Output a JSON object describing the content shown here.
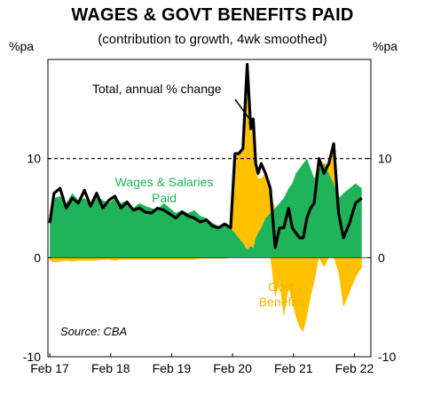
{
  "title": "WAGES & GOVT BENEFITS PAID",
  "subtitle": "(contribution to growth, 4wk smoothed)",
  "y_unit_left": "%pa",
  "y_unit_right": "%pa",
  "source": "Source: CBA",
  "annotations": {
    "total": "Total, annual % change",
    "wages_line1": "Wages & Salaries",
    "wages_line2": "Paid",
    "govt_line1": "Govt",
    "govt_line2": "Benefits"
  },
  "colors": {
    "wages": "#1fb35a",
    "govt": "#ffc000",
    "total": "#000000",
    "wages_text": "#1fb35a",
    "govt_text": "#f5b400"
  },
  "chart_data": {
    "type": "area",
    "title": "WAGES & GOVT BENEFITS PAID",
    "subtitle": "(contribution to growth, 4wk smoothed)",
    "ylabel": "%pa",
    "ylim": [
      -10,
      20
    ],
    "yticks": [
      -10,
      0,
      10
    ],
    "xlim": [
      2017.05,
      2022.35
    ],
    "xticks": [
      {
        "x": 2017.08,
        "label": "Feb 17"
      },
      {
        "x": 2018.08,
        "label": "Feb 18"
      },
      {
        "x": 2019.08,
        "label": "Feb 19"
      },
      {
        "x": 2020.08,
        "label": "Feb 20"
      },
      {
        "x": 2021.08,
        "label": "Feb 21"
      },
      {
        "x": 2022.08,
        "label": "Feb 22"
      }
    ],
    "reference_line": 10,
    "grid": false,
    "x": [
      2017.08,
      2017.15,
      2017.25,
      2017.35,
      2017.45,
      2017.55,
      2017.65,
      2017.75,
      2017.85,
      2017.95,
      2018.05,
      2018.15,
      2018.25,
      2018.35,
      2018.45,
      2018.55,
      2018.65,
      2018.75,
      2018.85,
      2018.95,
      2019.05,
      2019.15,
      2019.25,
      2019.35,
      2019.45,
      2019.55,
      2019.65,
      2019.75,
      2019.85,
      2019.95,
      2020.05,
      2020.12,
      2020.18,
      2020.25,
      2020.32,
      2020.38,
      2020.42,
      2020.46,
      2020.5,
      2020.55,
      2020.62,
      2020.7,
      2020.78,
      2020.85,
      2020.92,
      2021.0,
      2021.06,
      2021.12,
      2021.18,
      2021.24,
      2021.3,
      2021.36,
      2021.42,
      2021.5,
      2021.58,
      2021.66,
      2021.74,
      2021.82,
      2021.9,
      2022.0,
      2022.1,
      2022.2
    ],
    "series": [
      {
        "name": "Wages & Salaries Paid",
        "values": [
          3.5,
          6.0,
          6.2,
          5.5,
          6.5,
          5.8,
          6.0,
          5.5,
          6.2,
          5.8,
          5.5,
          6.0,
          5.5,
          5.8,
          5.0,
          5.5,
          5.2,
          5.0,
          4.8,
          5.5,
          5.0,
          4.5,
          4.8,
          4.5,
          4.8,
          4.2,
          4.0,
          3.5,
          3.2,
          3.5,
          3.0,
          2.5,
          2.0,
          1.5,
          0.8,
          1.2,
          1.0,
          2.0,
          2.5,
          3.0,
          4.0,
          4.5,
          5.0,
          5.5,
          6.0,
          7.0,
          7.5,
          8.5,
          9.0,
          9.5,
          10.0,
          9.0,
          8.0,
          9.0,
          9.5,
          8.5,
          7.5,
          6.0,
          6.5,
          7.0,
          7.5,
          7.0
        ]
      },
      {
        "name": "Govt Benefits",
        "values": [
          -0.3,
          -0.5,
          -0.4,
          -0.3,
          -0.4,
          -0.3,
          -0.3,
          -0.3,
          -0.3,
          -0.2,
          -0.2,
          -0.3,
          -0.2,
          -0.2,
          -0.2,
          -0.2,
          -0.2,
          -0.2,
          -0.2,
          -0.2,
          -0.2,
          -0.2,
          -0.2,
          -0.2,
          -0.2,
          -0.1,
          -0.1,
          -0.1,
          -0.1,
          -0.1,
          0.0,
          8.0,
          8.5,
          9.5,
          19.0,
          11.0,
          13.0,
          7.0,
          5.5,
          5.0,
          4.5,
          2.0,
          -4.0,
          -2.5,
          -6.0,
          -3.0,
          -4.5,
          -6.0,
          -7.0,
          -7.5,
          -6.0,
          -4.0,
          -2.5,
          1.0,
          -1.0,
          1.0,
          3.5,
          -1.5,
          -5.0,
          -3.5,
          -2.0,
          -1.0
        ]
      },
      {
        "name": "Total, annual % change",
        "values": [
          3.5,
          6.5,
          7.0,
          5.0,
          6.0,
          5.5,
          6.8,
          5.2,
          6.5,
          5.0,
          5.8,
          6.2,
          5.0,
          5.6,
          4.8,
          5.0,
          4.6,
          4.5,
          5.0,
          4.8,
          4.4,
          4.0,
          4.6,
          4.2,
          4.0,
          3.6,
          3.8,
          3.2,
          3.0,
          3.4,
          3.0,
          10.5,
          10.5,
          11.0,
          19.5,
          13.0,
          14.0,
          9.5,
          8.5,
          9.5,
          8.5,
          7.0,
          1.0,
          3.0,
          3.0,
          5.0,
          3.0,
          2.5,
          2.0,
          2.0,
          4.0,
          5.0,
          5.5,
          10.0,
          8.5,
          9.5,
          11.5,
          4.5,
          2.0,
          3.5,
          5.5,
          6.0
        ]
      }
    ]
  }
}
